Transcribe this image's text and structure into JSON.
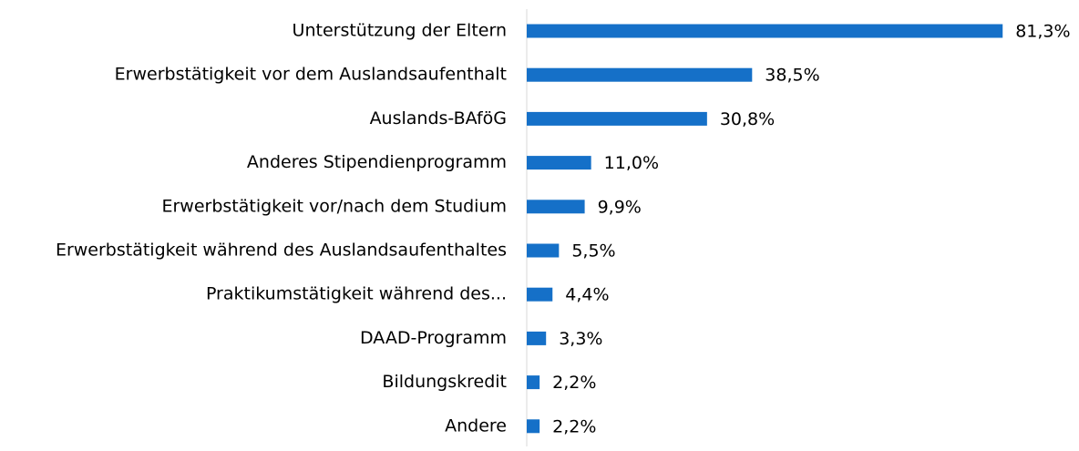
{
  "chart_data": {
    "type": "hbar",
    "categories": [
      "Unterstützung der Eltern",
      "Erwerbstätigkeit vor dem Auslandsaufenthalt",
      "Auslands-BAföG",
      "Anderes Stipendienprogramm",
      "Erwerbstätigkeit vor/nach dem Studium",
      "Erwerbstätigkeit während des Auslandsaufenthaltes",
      "Praktikumstätigkeit während des...",
      "DAAD-Programm",
      "Bildungskredit",
      "Andere"
    ],
    "values": [
      81.3,
      38.5,
      30.8,
      11.0,
      9.9,
      5.5,
      4.4,
      3.3,
      2.2,
      2.2
    ],
    "value_labels": [
      "81,3%",
      "38,5%",
      "30,8%",
      "11,0%",
      "9,9%",
      "5,5%",
      "4,4%",
      "3,3%",
      "2,2%",
      "2,2%"
    ],
    "color": "#1570c8",
    "xlim": [
      0,
      85
    ]
  }
}
